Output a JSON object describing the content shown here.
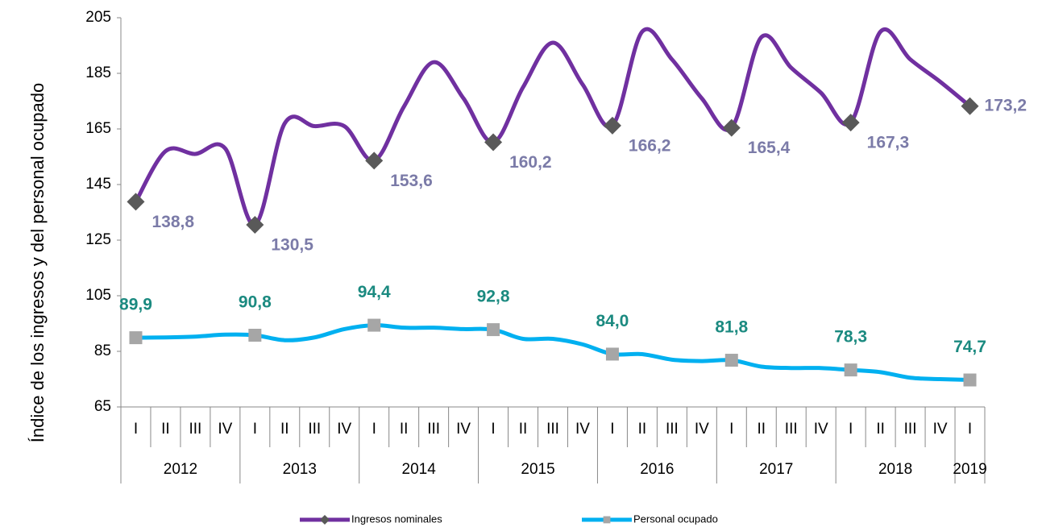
{
  "chart_data": {
    "type": "line",
    "y_label": "Índice de los ingresos y del personal ocupado",
    "categories": [
      "I",
      "II",
      "III",
      "IV",
      "I",
      "II",
      "III",
      "IV",
      "I",
      "II",
      "III",
      "IV",
      "I",
      "II",
      "III",
      "IV",
      "I",
      "II",
      "III",
      "IV",
      "I",
      "II",
      "III",
      "IV",
      "I",
      "II",
      "III",
      "IV",
      "I"
    ],
    "years": [
      "2012",
      "2013",
      "2014",
      "2015",
      "2016",
      "2017",
      "2018",
      "2019"
    ],
    "ylim": [
      65,
      205
    ],
    "yticks": [
      65,
      85,
      105,
      125,
      145,
      165,
      185,
      205
    ],
    "series": [
      {
        "name": "Ingresos nominales",
        "color": "#7030a0",
        "marker": "diamond",
        "marker_color": "#595959",
        "label_color": "#7b7ba8",
        "values": [
          138.8,
          157,
          156,
          158,
          130.5,
          167,
          166,
          166,
          153.6,
          173,
          189,
          176,
          160.2,
          180,
          196,
          181,
          166.2,
          200,
          190,
          176,
          165.4,
          198,
          187,
          178,
          167.3,
          200,
          190,
          182,
          173.2
        ],
        "value_labels": [
          "138,8",
          null,
          null,
          null,
          "130,5",
          null,
          null,
          null,
          "153,6",
          null,
          null,
          null,
          "160,2",
          null,
          null,
          null,
          "166,2",
          null,
          null,
          null,
          "165,4",
          null,
          null,
          null,
          "167,3",
          null,
          null,
          null,
          "173,2"
        ]
      },
      {
        "name": "Personal ocupado",
        "color": "#00b0f0",
        "marker": "square",
        "marker_color": "#a6a6a6",
        "label_color": "#1b8a80",
        "values": [
          89.9,
          90,
          90.3,
          91,
          90.8,
          89,
          90,
          93,
          94.4,
          93.5,
          93.5,
          93,
          92.8,
          89.5,
          89.5,
          87.5,
          84.0,
          84,
          82,
          81.5,
          81.8,
          79.5,
          79,
          79,
          78.3,
          77.5,
          75.5,
          75,
          74.7
        ],
        "value_labels": [
          "89,9",
          null,
          null,
          null,
          "90,8",
          null,
          null,
          null,
          "94,4",
          null,
          null,
          null,
          "92,8",
          null,
          null,
          null,
          "84,0",
          null,
          null,
          null,
          "81,8",
          null,
          null,
          null,
          "78,3",
          null,
          null,
          null,
          "74,7"
        ]
      }
    ]
  }
}
